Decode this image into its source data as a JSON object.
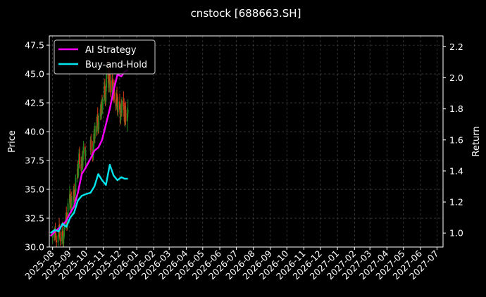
{
  "chart_data": {
    "type": "line",
    "title": "cnstock [688663.SH]",
    "xlabel": "",
    "ylabel": "Price",
    "y2label": "Return",
    "grid": true,
    "legend_position": "top-left",
    "x_ticks": [
      "2025-08",
      "2025-09",
      "2025-10",
      "2025-11",
      "2025-12",
      "2026-01",
      "2026-02",
      "2026-03",
      "2026-04",
      "2026-05",
      "2026-06",
      "2026-07",
      "2026-08",
      "2026-09",
      "2026-10",
      "2026-11",
      "2026-12",
      "2027-01",
      "2027-02",
      "2027-03",
      "2027-04",
      "2027-05",
      "2027-06",
      "2027-07"
    ],
    "x_range": [
      "2025-07-26",
      "2027-07-12"
    ],
    "ylim": [
      30.0,
      48.3
    ],
    "y_ticks": [
      30.0,
      32.5,
      35.0,
      37.5,
      40.0,
      42.5,
      45.0,
      47.5
    ],
    "y2lim": [
      0.91,
      2.27
    ],
    "y2_ticks": [
      1.0,
      1.2,
      1.4,
      1.6,
      1.8,
      2.0,
      2.2
    ],
    "candles_description": "daily OHLC candlesticks, green up / red down",
    "candle_colors": {
      "up": "#1f8a1f",
      "down": "#d43a1a"
    },
    "candles": [
      [
        "2025-08-01",
        30.8,
        31.4,
        30.3,
        31.1
      ],
      [
        "2025-08-04",
        31.1,
        31.6,
        30.5,
        30.9
      ],
      [
        "2025-08-05",
        30.9,
        31.8,
        30.6,
        31.5
      ],
      [
        "2025-08-06",
        31.5,
        32.1,
        30.9,
        31.2
      ],
      [
        "2025-08-07",
        31.2,
        31.5,
        30.4,
        30.6
      ],
      [
        "2025-08-08",
        30.6,
        31.0,
        30.0,
        30.4
      ],
      [
        "2025-08-11",
        30.4,
        31.2,
        30.1,
        31.0
      ],
      [
        "2025-08-12",
        31.0,
        31.9,
        30.7,
        31.7
      ],
      [
        "2025-08-13",
        31.7,
        32.5,
        31.2,
        31.4
      ],
      [
        "2025-08-14",
        31.4,
        32.0,
        30.6,
        30.8
      ],
      [
        "2025-08-15",
        30.8,
        31.3,
        30.1,
        30.5
      ],
      [
        "2025-08-18",
        30.5,
        31.6,
        30.2,
        31.3
      ],
      [
        "2025-08-19",
        31.3,
        32.2,
        30.9,
        31.0
      ],
      [
        "2025-08-20",
        31.0,
        31.4,
        30.0,
        30.3
      ],
      [
        "2025-08-21",
        30.3,
        31.1,
        30.0,
        30.9
      ],
      [
        "2025-08-22",
        30.9,
        32.0,
        30.7,
        31.8
      ],
      [
        "2025-08-25",
        31.8,
        33.0,
        31.5,
        32.6
      ],
      [
        "2025-08-26",
        32.6,
        33.5,
        31.9,
        32.2
      ],
      [
        "2025-08-27",
        32.2,
        33.0,
        31.4,
        31.7
      ],
      [
        "2025-08-28",
        31.7,
        32.9,
        31.5,
        32.5
      ],
      [
        "2025-08-29",
        32.5,
        34.2,
        32.2,
        33.8
      ],
      [
        "2025-09-01",
        33.8,
        35.3,
        33.2,
        34.6
      ],
      [
        "2025-09-02",
        34.6,
        35.0,
        33.4,
        33.7
      ],
      [
        "2025-09-03",
        33.7,
        34.6,
        32.9,
        34.2
      ],
      [
        "2025-09-04",
        34.2,
        34.8,
        33.0,
        33.3
      ],
      [
        "2025-09-05",
        33.3,
        34.4,
        32.8,
        34.0
      ],
      [
        "2025-09-08",
        34.0,
        35.3,
        33.7,
        34.9
      ],
      [
        "2025-09-09",
        34.9,
        35.5,
        34.1,
        34.4
      ],
      [
        "2025-09-10",
        34.4,
        35.0,
        33.5,
        33.9
      ],
      [
        "2025-09-11",
        33.9,
        35.1,
        33.6,
        34.8
      ],
      [
        "2025-09-12",
        34.8,
        36.3,
        34.5,
        36.0
      ],
      [
        "2025-09-15",
        36.0,
        37.2,
        35.6,
        36.8
      ],
      [
        "2025-09-16",
        36.8,
        37.5,
        35.9,
        36.2
      ],
      [
        "2025-09-17",
        36.2,
        37.6,
        36.0,
        37.3
      ],
      [
        "2025-09-18",
        37.3,
        38.5,
        36.9,
        38.1
      ],
      [
        "2025-09-19",
        38.1,
        38.7,
        36.8,
        37.2
      ],
      [
        "2025-09-22",
        37.2,
        37.8,
        36.1,
        36.6
      ],
      [
        "2025-09-23",
        36.6,
        37.9,
        36.3,
        37.6
      ],
      [
        "2025-09-24",
        37.6,
        38.3,
        36.8,
        37.0
      ],
      [
        "2025-09-25",
        37.0,
        38.4,
        36.7,
        38.1
      ],
      [
        "2025-09-26",
        38.1,
        39.2,
        37.5,
        38.7
      ],
      [
        "2025-09-29",
        38.7,
        39.0,
        37.6,
        37.9
      ],
      [
        "2025-09-30",
        37.9,
        38.6,
        37.0,
        38.3
      ],
      [
        "2025-10-09",
        38.3,
        39.6,
        38.0,
        39.3
      ],
      [
        "2025-10-10",
        39.3,
        39.8,
        38.0,
        38.4
      ],
      [
        "2025-10-13",
        38.4,
        39.2,
        37.4,
        37.8
      ],
      [
        "2025-10-14",
        37.8,
        39.0,
        37.5,
        38.7
      ],
      [
        "2025-10-15",
        38.7,
        40.2,
        38.4,
        39.8
      ],
      [
        "2025-10-16",
        39.8,
        40.5,
        39.0,
        39.4
      ],
      [
        "2025-10-17",
        39.4,
        40.8,
        39.0,
        40.5
      ],
      [
        "2025-10-20",
        40.5,
        41.3,
        39.6,
        40.0
      ],
      [
        "2025-10-21",
        40.0,
        41.5,
        39.7,
        41.2
      ],
      [
        "2025-10-22",
        41.2,
        42.1,
        40.5,
        40.8
      ],
      [
        "2025-10-23",
        40.8,
        41.4,
        39.8,
        40.2
      ],
      [
        "2025-10-24",
        40.2,
        41.6,
        39.9,
        41.3
      ],
      [
        "2025-10-27",
        41.3,
        42.4,
        41.0,
        42.0
      ],
      [
        "2025-10-28",
        42.0,
        42.6,
        41.0,
        41.4
      ],
      [
        "2025-10-29",
        41.4,
        42.8,
        41.1,
        42.5
      ],
      [
        "2025-10-30",
        42.5,
        43.2,
        41.6,
        41.9
      ],
      [
        "2025-10-31",
        41.9,
        43.0,
        41.5,
        42.7
      ],
      [
        "2025-11-03",
        42.7,
        44.4,
        42.4,
        44.0
      ],
      [
        "2025-11-04",
        44.0,
        44.6,
        42.9,
        43.2
      ],
      [
        "2025-11-05",
        43.2,
        43.9,
        42.2,
        42.6
      ],
      [
        "2025-11-06",
        42.6,
        44.2,
        42.3,
        43.8
      ],
      [
        "2025-11-07",
        43.8,
        45.7,
        43.5,
        45.2
      ],
      [
        "2025-11-10",
        45.2,
        46.2,
        44.2,
        44.6
      ],
      [
        "2025-11-11",
        44.6,
        45.3,
        43.4,
        43.8
      ],
      [
        "2025-11-12",
        43.8,
        45.2,
        43.4,
        44.9
      ],
      [
        "2025-11-13",
        44.9,
        46.0,
        44.1,
        44.4
      ],
      [
        "2025-11-14",
        44.4,
        45.1,
        43.0,
        43.4
      ],
      [
        "2025-11-17",
        43.4,
        44.9,
        43.1,
        44.5
      ],
      [
        "2025-11-18",
        44.5,
        45.2,
        43.5,
        43.9
      ],
      [
        "2025-11-19",
        43.9,
        44.6,
        42.6,
        43.0
      ],
      [
        "2025-11-20",
        43.0,
        44.3,
        42.7,
        44.0
      ],
      [
        "2025-11-21",
        44.0,
        44.5,
        42.5,
        42.8
      ],
      [
        "2025-11-24",
        42.8,
        43.4,
        41.8,
        42.2
      ],
      [
        "2025-11-25",
        42.2,
        43.6,
        41.9,
        43.3
      ],
      [
        "2025-11-26",
        43.3,
        43.9,
        42.1,
        42.4
      ],
      [
        "2025-11-27",
        42.4,
        43.2,
        41.4,
        41.7
      ],
      [
        "2025-11-28",
        41.7,
        43.0,
        41.3,
        42.6
      ],
      [
        "2025-12-01",
        42.6,
        43.3,
        41.6,
        41.9
      ],
      [
        "2025-12-02",
        41.9,
        42.5,
        40.6,
        41.0
      ],
      [
        "2025-12-03",
        41.0,
        42.4,
        40.7,
        42.1
      ],
      [
        "2025-12-04",
        42.1,
        42.8,
        41.3,
        41.6
      ],
      [
        "2025-12-05",
        41.6,
        43.0,
        41.3,
        42.7
      ],
      [
        "2025-12-08",
        42.7,
        43.5,
        41.9,
        42.2
      ],
      [
        "2025-12-09",
        42.2,
        42.9,
        40.9,
        41.3
      ],
      [
        "2025-12-10",
        41.3,
        42.5,
        40.5,
        40.8
      ],
      [
        "2025-12-11",
        40.8,
        42.2,
        40.4,
        41.9
      ],
      [
        "2025-12-12",
        41.9,
        42.6,
        40.6,
        40.9
      ],
      [
        "2025-12-15",
        40.9,
        42.1,
        40.0,
        41.6
      ],
      [
        "2025-12-16",
        41.6,
        42.8,
        41.2,
        41.9
      ]
    ],
    "series": [
      {
        "name": "AI Strategy",
        "color": "#ff00ff",
        "axis": "right",
        "x": [
          "2025-07-28",
          "2025-08-05",
          "2025-08-12",
          "2025-08-19",
          "2025-08-26",
          "2025-09-02",
          "2025-09-09",
          "2025-09-16",
          "2025-09-23",
          "2025-09-30",
          "2025-10-09",
          "2025-10-16",
          "2025-10-23",
          "2025-10-30",
          "2025-11-06",
          "2025-11-13",
          "2025-11-20",
          "2025-11-27",
          "2025-12-04",
          "2025-12-10",
          "2025-12-16"
        ],
        "values": [
          0.98,
          1.01,
          1.03,
          1.05,
          1.08,
          1.13,
          1.17,
          1.26,
          1.38,
          1.42,
          1.48,
          1.53,
          1.55,
          1.6,
          1.7,
          1.8,
          1.92,
          2.02,
          2.01,
          2.04,
          2.05
        ]
      },
      {
        "name": "Buy-and-Hold",
        "color": "#00e5ee",
        "axis": "right",
        "x": [
          "2025-07-28",
          "2025-08-05",
          "2025-08-12",
          "2025-08-19",
          "2025-08-26",
          "2025-09-02",
          "2025-09-09",
          "2025-09-16",
          "2025-09-23",
          "2025-09-30",
          "2025-10-09",
          "2025-10-16",
          "2025-10-23",
          "2025-10-30",
          "2025-11-06",
          "2025-11-13",
          "2025-11-20",
          "2025-11-27",
          "2025-12-04",
          "2025-12-10",
          "2025-12-16"
        ],
        "values": [
          1.0,
          1.02,
          1.01,
          1.06,
          1.04,
          1.1,
          1.13,
          1.21,
          1.24,
          1.25,
          1.26,
          1.3,
          1.38,
          1.34,
          1.31,
          1.44,
          1.37,
          1.34,
          1.36,
          1.35,
          1.35
        ]
      }
    ]
  }
}
